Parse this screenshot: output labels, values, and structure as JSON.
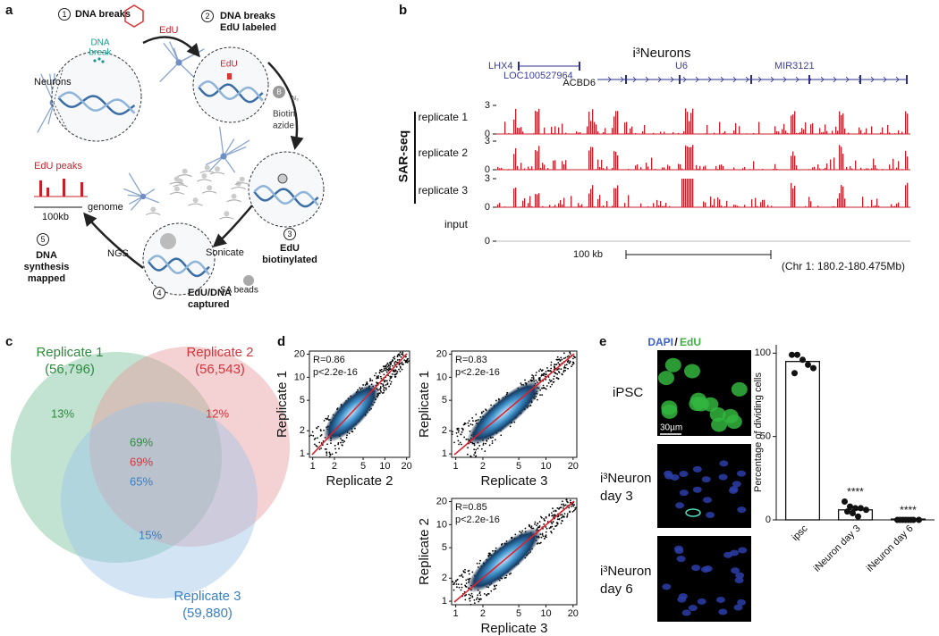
{
  "figure": {
    "a": {
      "label": "a",
      "neurons": "Neurons",
      "dna_break": [
        "DNA",
        "break"
      ],
      "edu_reagent": "EdU",
      "edu_in_circle": "EdU",
      "biotin_icon": "B",
      "azide_icon": "N₃",
      "biotin_azide": [
        "Biotin",
        "azide"
      ],
      "sonicate": "Sonicate",
      "sa_beads": "SA beads",
      "ngs": "NGS",
      "edu_peaks": "EdU peaks",
      "scale": "100kb",
      "genome": "genome",
      "steps": [
        {
          "number": "1",
          "lines": [
            "DNA breaks"
          ]
        },
        {
          "number": "2",
          "lines": [
            "DNA breaks",
            "EdU labeled"
          ]
        },
        {
          "number": "3",
          "lines": [
            "EdU",
            "biotinylated"
          ]
        },
        {
          "number": "4",
          "lines": [
            "EdU/DNA",
            "captured"
          ]
        },
        {
          "number": "5",
          "lines": [
            "DNA",
            "synthesis",
            "mapped"
          ]
        }
      ]
    },
    "b": {
      "label": "b",
      "title": "i³Neurons",
      "genes": [
        "LHX4",
        "LOC100527964",
        "U6",
        "MIR3121",
        "ACBD6"
      ],
      "assay": "SAR-seq",
      "tracks": [
        {
          "name": "replicate 1",
          "yticks": [
            0,
            3
          ]
        },
        {
          "name": "replicate 2",
          "yticks": [
            0,
            3
          ]
        },
        {
          "name": "replicate 3",
          "yticks": [
            0,
            3
          ]
        },
        {
          "name": "input",
          "yticks": [
            0
          ]
        }
      ],
      "scale": "100 kb",
      "region": "(Chr 1: 180.2-180.475Mb)"
    },
    "c": {
      "label": "c",
      "sets": [
        {
          "name": "Replicate 1",
          "count": "(56,796)",
          "color": "#2e8b3e",
          "unique": "13%",
          "shared": "69%"
        },
        {
          "name": "Replicate 2",
          "count": "(56,543)",
          "color": "#d4363d",
          "unique": "12%",
          "shared": "69%"
        },
        {
          "name": "Replicate 3",
          "count": "(59,880)",
          "color": "#3a7fc1",
          "unique": "15%",
          "shared": "65%"
        }
      ]
    },
    "d": {
      "label": "d",
      "ticks": [
        1,
        2,
        5,
        10,
        20
      ],
      "lim": [
        0.9,
        22
      ],
      "plots": [
        {
          "x_label": "Replicate 2",
          "y_label": "Replicate 1",
          "r": "R=0.86",
          "p": "p<2.2e-16"
        },
        {
          "x_label": "Replicate 3",
          "y_label": "Replicate 1",
          "r": "R=0.83",
          "p": "p<2.2e-16"
        },
        {
          "x_label": "Replicate 3",
          "y_label": "Replicate 2",
          "r": "R=0.85",
          "p": "p<2.2e-16"
        }
      ]
    },
    "e": {
      "label": "e",
      "stain": [
        "DAPI",
        "/",
        "EdU"
      ],
      "scale_bar": "30µm",
      "rows": [
        [
          "iPSC"
        ],
        [
          "i³Neuron",
          "day 3"
        ],
        [
          "i³Neuron",
          "day 6"
        ]
      ]
    }
  },
  "chart_data": {
    "type": "bar",
    "y_label": "Percentage of dividing cells",
    "categories": [
      "ipsc",
      "iNeuron day 3",
      "iNeuron day 6"
    ],
    "values": [
      95,
      6,
      0.5
    ],
    "points": [
      [
        99,
        99,
        96,
        93,
        91,
        88
      ],
      [
        11,
        8,
        7,
        7,
        6,
        5,
        4,
        2
      ],
      [
        0,
        0,
        0,
        0,
        0,
        0,
        0,
        0
      ]
    ],
    "significance": [
      null,
      "****",
      "****"
    ],
    "ylim": [
      0,
      105
    ],
    "yticks": [
      0,
      50,
      100
    ],
    "color": "#ffffff"
  }
}
